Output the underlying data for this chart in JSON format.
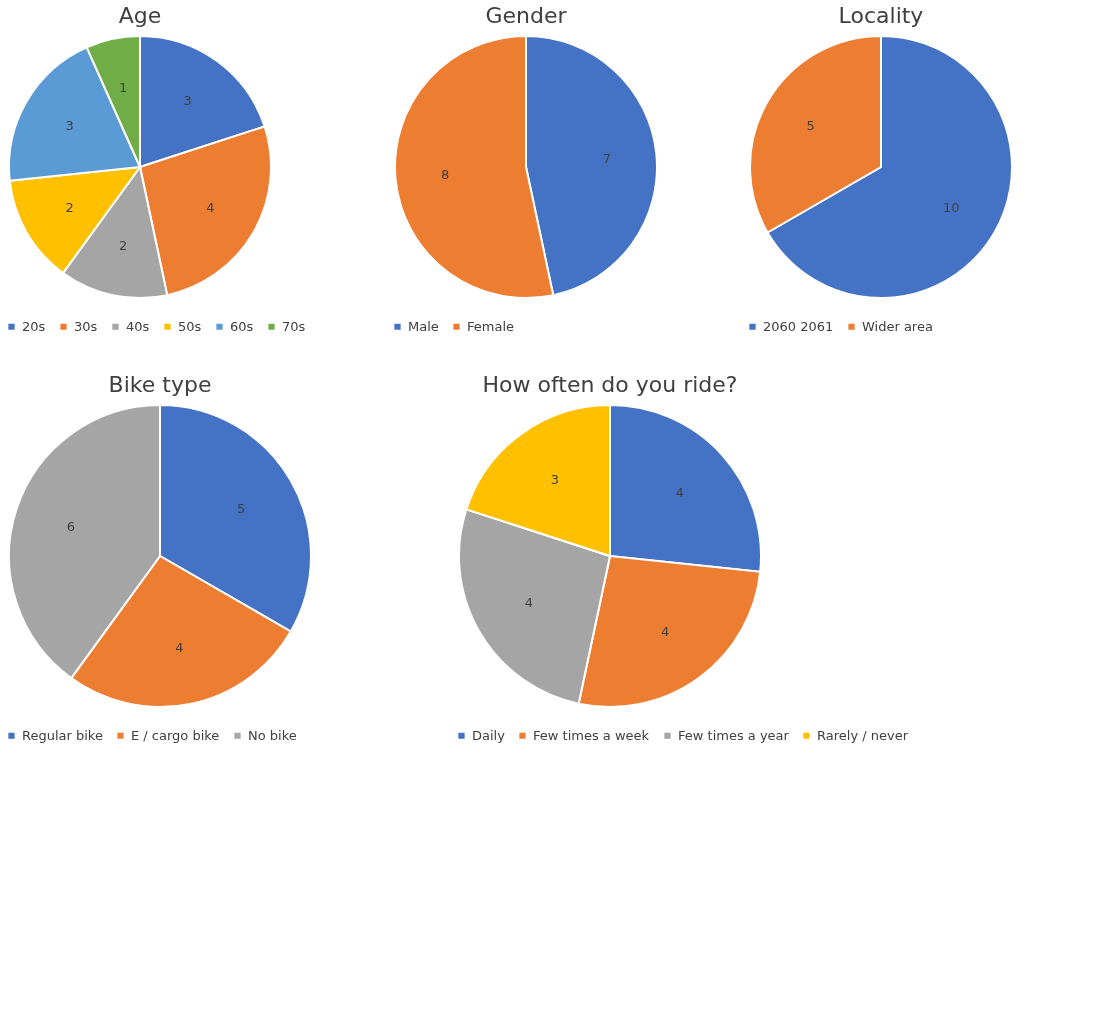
{
  "chart_data": [
    {
      "type": "pie",
      "title": "Age",
      "categories": [
        "20s",
        "30s",
        "40s",
        "50s",
        "60s",
        "70s"
      ],
      "values": [
        3,
        4,
        2,
        2,
        3,
        1
      ],
      "colors": [
        "#4472c4",
        "#ed7d31",
        "#a5a5a5",
        "#ffc000",
        "#5b9bd5",
        "#70ad47"
      ],
      "data_labels": true,
      "legend": "bottom"
    },
    {
      "type": "pie",
      "title": "Gender",
      "categories": [
        "Male",
        "Female"
      ],
      "values": [
        7,
        8
      ],
      "colors": [
        "#4472c4",
        "#ed7d31"
      ],
      "data_labels": true,
      "legend": "bottom"
    },
    {
      "type": "pie",
      "title": "Locality",
      "categories": [
        "2060 2061",
        "Wider area"
      ],
      "values": [
        10,
        5
      ],
      "colors": [
        "#4472c4",
        "#ed7d31"
      ],
      "data_labels": true,
      "legend": "bottom"
    },
    {
      "type": "pie",
      "title": "Bike type",
      "categories": [
        "Regular bike",
        "E / cargo bike",
        "No bike"
      ],
      "values": [
        5,
        4,
        6
      ],
      "colors": [
        "#4472c4",
        "#ed7d31",
        "#a5a5a5"
      ],
      "data_labels": true,
      "legend": "bottom"
    },
    {
      "type": "pie",
      "title": "How often do you ride?",
      "categories": [
        "Daily",
        "Few times a week",
        "Few times a year",
        "Rarely / never"
      ],
      "values": [
        4,
        4,
        4,
        3
      ],
      "colors": [
        "#4472c4",
        "#ed7d31",
        "#a5a5a5",
        "#ffc000"
      ],
      "data_labels": true,
      "legend": "bottom"
    }
  ]
}
